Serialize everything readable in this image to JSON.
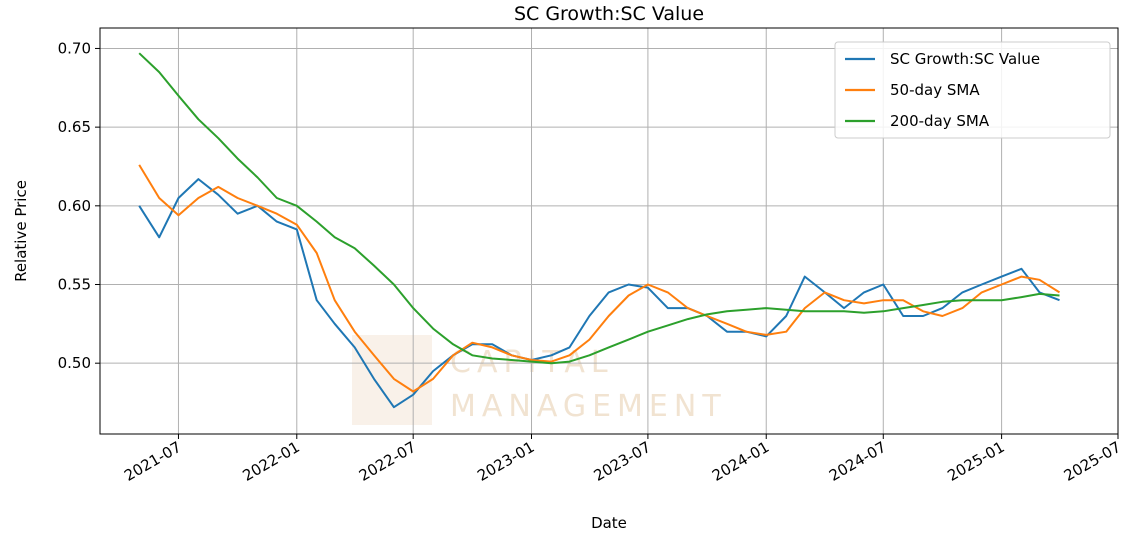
{
  "chart_data": {
    "type": "line",
    "title": "SC Growth:SC Value",
    "xlabel": "Date",
    "ylabel": "Relative Price",
    "watermark": [
      "CAPITAL",
      "MANAGEMENT"
    ],
    "x": [
      "2021-05",
      "2021-06",
      "2021-07",
      "2021-08",
      "2021-09",
      "2021-10",
      "2021-11",
      "2021-12",
      "2022-01",
      "2022-02",
      "2022-03",
      "2022-04",
      "2022-05",
      "2022-06",
      "2022-07",
      "2022-08",
      "2022-09",
      "2022-10",
      "2022-11",
      "2022-12",
      "2023-01",
      "2023-02",
      "2023-03",
      "2023-04",
      "2023-05",
      "2023-06",
      "2023-07",
      "2023-08",
      "2023-09",
      "2023-10",
      "2023-11",
      "2023-12",
      "2024-01",
      "2024-02",
      "2024-03",
      "2024-04",
      "2024-05",
      "2024-06",
      "2024-07",
      "2024-08",
      "2024-09",
      "2024-10",
      "2024-11",
      "2024-12",
      "2025-01",
      "2025-02",
      "2025-03",
      "2025-04"
    ],
    "series": [
      {
        "name": "SC Growth:SC Value",
        "color": "#1f77b4",
        "values": [
          0.6,
          0.58,
          0.605,
          0.617,
          0.607,
          0.595,
          0.6,
          0.59,
          0.585,
          0.54,
          0.525,
          0.51,
          0.49,
          0.472,
          0.48,
          0.495,
          0.505,
          0.512,
          0.512,
          0.505,
          0.502,
          0.505,
          0.51,
          0.53,
          0.545,
          0.55,
          0.548,
          0.535,
          0.535,
          0.53,
          0.52,
          0.52,
          0.517,
          0.53,
          0.555,
          0.545,
          0.535,
          0.545,
          0.55,
          0.53,
          0.53,
          0.535,
          0.545,
          0.55,
          0.555,
          0.56,
          0.545,
          0.54
        ]
      },
      {
        "name": "50-day SMA",
        "color": "#ff7f0e",
        "values": [
          0.626,
          0.605,
          0.594,
          0.605,
          0.612,
          0.605,
          0.6,
          0.595,
          0.588,
          0.57,
          0.54,
          0.52,
          0.505,
          0.49,
          0.482,
          0.49,
          0.505,
          0.513,
          0.51,
          0.505,
          0.502,
          0.501,
          0.505,
          0.515,
          0.53,
          0.543,
          0.55,
          0.545,
          0.535,
          0.53,
          0.525,
          0.52,
          0.518,
          0.52,
          0.535,
          0.545,
          0.54,
          0.538,
          0.54,
          0.54,
          0.533,
          0.53,
          0.535,
          0.545,
          0.55,
          0.555,
          0.553,
          0.545
        ]
      },
      {
        "name": "200-day SMA",
        "color": "#2ca02c",
        "values": [
          0.697,
          0.685,
          0.67,
          0.655,
          0.643,
          0.63,
          0.618,
          0.605,
          0.6,
          0.59,
          0.58,
          0.573,
          0.562,
          0.55,
          0.535,
          0.522,
          0.512,
          0.505,
          0.503,
          0.502,
          0.501,
          0.5,
          0.501,
          0.505,
          0.51,
          0.515,
          0.52,
          0.524,
          0.528,
          0.531,
          0.533,
          0.534,
          0.535,
          0.534,
          0.533,
          0.533,
          0.533,
          0.532,
          0.533,
          0.535,
          0.537,
          0.539,
          0.54,
          0.54,
          0.54,
          0.542,
          0.544,
          0.543
        ]
      }
    ],
    "xlim": [
      "2021-03",
      "2025-07"
    ],
    "xticks": [
      "2021-07",
      "2022-01",
      "2022-07",
      "2023-01",
      "2023-07",
      "2024-01",
      "2024-07",
      "2025-01",
      "2025-07"
    ],
    "ylim": [
      0.455,
      0.713
    ],
    "yticks": [
      {
        "value": 0.5,
        "label": "0.50"
      },
      {
        "value": 0.55,
        "label": "0.55"
      },
      {
        "value": 0.6,
        "label": "0.60"
      },
      {
        "value": 0.65,
        "label": "0.65"
      },
      {
        "value": 0.7,
        "label": "0.70"
      }
    ],
    "grid": true,
    "legend": "upper right"
  }
}
